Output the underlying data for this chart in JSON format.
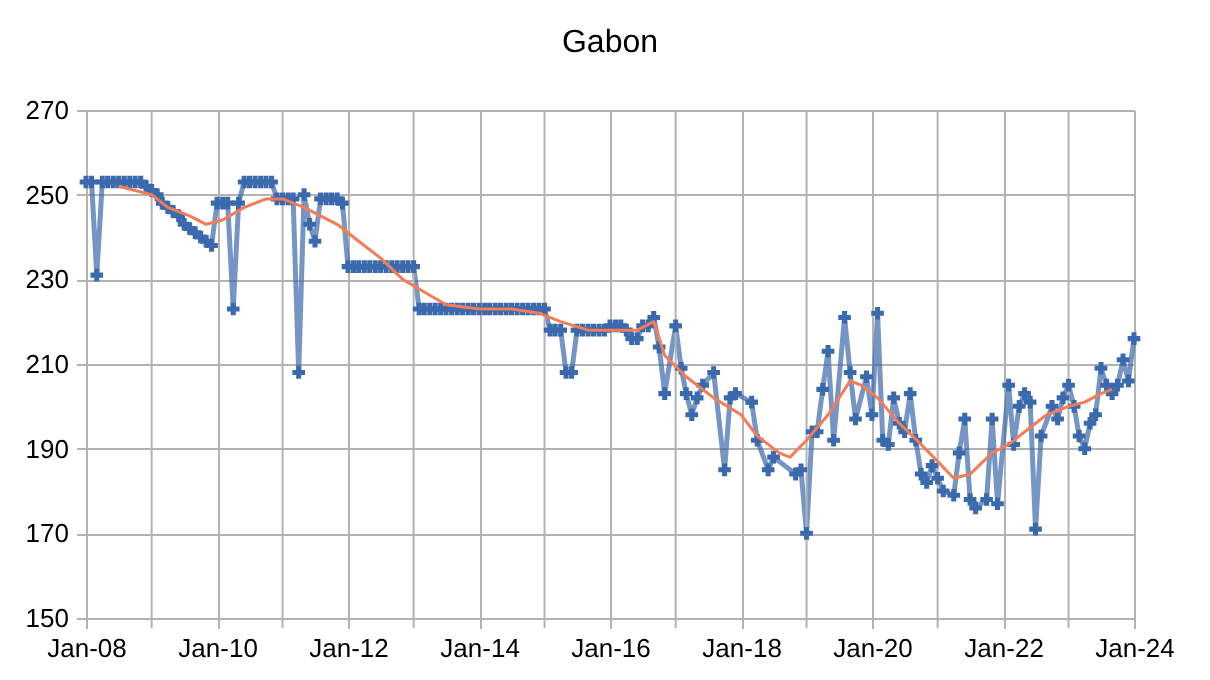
{
  "chart_data": {
    "type": "line",
    "title": "Gabon",
    "xlim": [
      "2008-01",
      "2024-01"
    ],
    "xticks": [
      {
        "value": "2008-01",
        "label": "Jan-08"
      },
      {
        "value": "2009-01",
        "label": null
      },
      {
        "value": "2010-01",
        "label": "Jan-10"
      },
      {
        "value": "2011-01",
        "label": null
      },
      {
        "value": "2012-01",
        "label": "Jan-12"
      },
      {
        "value": "2013-01",
        "label": null
      },
      {
        "value": "2014-01",
        "label": "Jan-14"
      },
      {
        "value": "2015-01",
        "label": null
      },
      {
        "value": "2016-01",
        "label": "Jan-16"
      },
      {
        "value": "2017-01",
        "label": null
      },
      {
        "value": "2018-01",
        "label": "Jan-18"
      },
      {
        "value": "2019-01",
        "label": null
      },
      {
        "value": "2020-01",
        "label": "Jan-20"
      },
      {
        "value": "2021-01",
        "label": null
      },
      {
        "value": "2022-01",
        "label": "Jan-22"
      },
      {
        "value": "2023-01",
        "label": null
      },
      {
        "value": "2024-01",
        "label": "Jan-24"
      }
    ],
    "ylim": [
      150,
      270
    ],
    "yticks": [
      150,
      170,
      190,
      210,
      230,
      250,
      270
    ],
    "grid": true,
    "series": [
      {
        "color": "#3a6aad",
        "marker": "cross",
        "x": [
          "2008-01",
          "2008-02",
          "2008-03",
          "2008-04",
          "2008-05",
          "2008-06",
          "2008-07",
          "2008-08",
          "2008-09",
          "2008-10",
          "2008-11",
          "2008-12",
          "2009-01",
          "2009-02",
          "2009-03",
          "2009-04",
          "2009-05",
          "2009-06",
          "2009-07",
          "2009-08",
          "2009-09",
          "2009-10",
          "2009-11",
          "2009-12",
          "2010-01",
          "2010-02",
          "2010-03",
          "2010-04",
          "2010-05",
          "2010-06",
          "2010-07",
          "2010-08",
          "2010-09",
          "2010-10",
          "2010-11",
          "2010-12",
          "2011-01",
          "2011-02",
          "2011-03",
          "2011-04",
          "2011-05",
          "2011-06",
          "2011-07",
          "2011-08",
          "2011-09",
          "2011-10",
          "2011-11",
          "2011-12",
          "2012-01",
          "2012-02",
          "2012-03",
          "2012-04",
          "2012-05",
          "2012-06",
          "2012-07",
          "2012-08",
          "2012-09",
          "2012-10",
          "2012-11",
          "2012-12",
          "2013-01",
          "2013-02",
          "2013-03",
          "2013-04",
          "2013-05",
          "2013-06",
          "2013-07",
          "2013-08",
          "2013-09",
          "2013-10",
          "2013-11",
          "2013-12",
          "2014-01",
          "2014-02",
          "2014-03",
          "2014-04",
          "2014-05",
          "2014-06",
          "2014-07",
          "2014-08",
          "2014-09",
          "2014-10",
          "2014-11",
          "2014-12",
          "2015-01",
          "2015-02",
          "2015-03",
          "2015-04",
          "2015-05",
          "2015-06",
          "2015-07",
          "2015-08",
          "2015-09",
          "2015-10",
          "2015-11",
          "2015-12",
          "2016-01",
          "2016-02",
          "2016-03",
          "2016-04",
          "2016-05",
          "2016-06",
          "2016-07",
          "2016-08",
          "2016-09",
          "2016-10",
          "2016-11",
          "2017-01",
          "2017-02",
          "2017-03",
          "2017-04",
          "2017-05",
          "2017-06",
          "2017-08",
          "2017-10",
          "2017-11",
          "2017-12",
          "2018-03",
          "2018-04",
          "2018-06",
          "2018-07",
          "2018-11",
          "2018-12",
          "2019-01",
          "2019-02",
          "2019-03",
          "2019-04",
          "2019-05",
          "2019-06",
          "2019-08",
          "2019-09",
          "2019-10",
          "2019-12",
          "2020-01",
          "2020-02",
          "2020-03",
          "2020-04",
          "2020-05",
          "2020-06",
          "2020-07",
          "2020-08",
          "2020-09",
          "2020-10",
          "2020-11",
          "2020-12",
          "2021-01",
          "2021-02",
          "2021-04",
          "2021-05",
          "2021-06",
          "2021-07",
          "2021-08",
          "2021-10",
          "2021-11",
          "2021-12",
          "2022-02",
          "2022-03",
          "2022-04",
          "2022-05",
          "2022-06",
          "2022-07",
          "2022-08",
          "2022-10",
          "2022-11",
          "2022-12",
          "2023-01",
          "2023-02",
          "2023-03",
          "2023-04",
          "2023-05",
          "2023-06",
          "2023-07",
          "2023-08",
          "2023-09",
          "2023-10",
          "2023-11",
          "2023-12",
          "2024-01"
        ],
        "values": [
          253,
          253,
          231,
          253,
          253,
          253,
          253,
          253,
          253,
          253,
          253,
          252,
          251,
          250,
          248,
          247,
          246,
          245,
          243,
          242,
          241,
          240,
          239,
          238,
          248,
          248,
          248,
          223,
          248,
          253,
          253,
          253,
          253,
          253,
          253,
          249,
          249,
          249,
          249,
          208,
          250,
          243,
          239,
          249,
          249,
          249,
          249,
          248,
          233,
          233,
          233,
          233,
          233,
          233,
          233,
          233,
          233,
          233,
          233,
          233,
          233,
          223,
          223,
          223,
          223,
          223,
          223,
          223,
          223,
          223,
          223,
          223,
          223,
          223,
          223,
          223,
          223,
          223,
          223,
          223,
          223,
          223,
          223,
          223,
          223,
          218,
          218,
          218,
          208,
          208,
          218,
          218,
          218,
          218,
          218,
          218,
          219,
          219,
          219,
          218,
          216,
          216,
          219,
          219,
          221,
          214,
          203,
          219,
          209,
          203,
          198,
          202,
          205,
          208,
          185,
          202,
          203,
          201,
          192,
          185,
          188,
          184,
          185,
          170,
          194,
          194,
          204,
          213,
          192,
          221,
          208,
          197,
          207,
          198,
          222,
          192,
          191,
          202,
          196,
          194,
          203,
          192,
          184,
          182,
          186,
          183,
          180,
          179,
          189,
          197,
          178,
          176,
          178,
          197,
          177,
          205,
          191,
          200,
          203,
          201,
          171,
          193,
          200,
          197,
          202,
          205,
          200,
          193,
          190,
          196,
          198,
          209,
          205,
          203,
          205,
          211,
          206,
          216
        ]
      },
      {
        "color": "#f47c56",
        "x": [
          "2008-07",
          "2008-10",
          "2009-01",
          "2009-04",
          "2009-08",
          "2009-11",
          "2010-02",
          "2010-06",
          "2010-10",
          "2011-01",
          "2011-05",
          "2011-08",
          "2011-11",
          "2012-03",
          "2012-07",
          "2012-11",
          "2013-03",
          "2013-07",
          "2014-01",
          "2014-07",
          "2014-12",
          "2015-04",
          "2015-09",
          "2016-01",
          "2016-06",
          "2016-09",
          "2016-11",
          "2017-03",
          "2017-08",
          "2018-01",
          "2018-04",
          "2018-08",
          "2018-10",
          "2019-01",
          "2019-05",
          "2019-09",
          "2019-11",
          "2020-02",
          "2020-06",
          "2020-10",
          "2021-01",
          "2021-04",
          "2021-07",
          "2021-11",
          "2022-02",
          "2022-06",
          "2022-09",
          "2023-01",
          "2023-04",
          "2023-07",
          "2023-09"
        ],
        "values": [
          252,
          251,
          250,
          247,
          245,
          243,
          244,
          247,
          249,
          249,
          247,
          245,
          243,
          239,
          235,
          230,
          227,
          224,
          223,
          223,
          222,
          220,
          218,
          218,
          218,
          220,
          212,
          207,
          202,
          198,
          193,
          189,
          188,
          192,
          198,
          206,
          205,
          202,
          196,
          191,
          187,
          183,
          184,
          189,
          191,
          195,
          198,
          200,
          201,
          203,
          204
        ]
      }
    ]
  }
}
